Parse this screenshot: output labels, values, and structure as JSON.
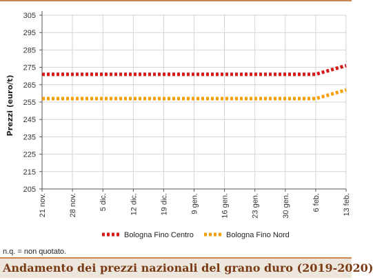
{
  "chart_data": {
    "type": "line",
    "title": "Andamento dei prezzi nazionali del grano duro (2019-2020)",
    "xlabel": "",
    "ylabel": "Prezzi (euro/t)",
    "categories": [
      "21 nov.",
      "28 nov.",
      "5 dic.",
      "12 dic.",
      "19 dic.",
      "9 gen.",
      "16 gen.",
      "23 gen.",
      "30 gen.",
      "6 feb.",
      "13 feb."
    ],
    "ylim": [
      205,
      305
    ],
    "yticks": [
      205,
      215,
      225,
      235,
      245,
      255,
      265,
      275,
      285,
      295,
      305
    ],
    "grid": true,
    "legend_position": "bottom",
    "series": [
      {
        "name": "Bologna Fino Centro",
        "color": "#d7191c",
        "values": [
          271,
          271,
          271,
          271,
          271,
          271,
          271,
          271,
          271,
          271,
          276
        ]
      },
      {
        "name": "Bologna Fino Nord",
        "color": "#f5a000",
        "values": [
          257,
          257,
          257,
          257,
          257,
          257,
          257,
          257,
          257,
          257,
          262
        ]
      }
    ]
  },
  "footnote": "n.q. = non quotato.",
  "colors": {
    "accent": "#c8844a",
    "title_text": "#7a3a16",
    "title_band": "#ece6dc"
  }
}
